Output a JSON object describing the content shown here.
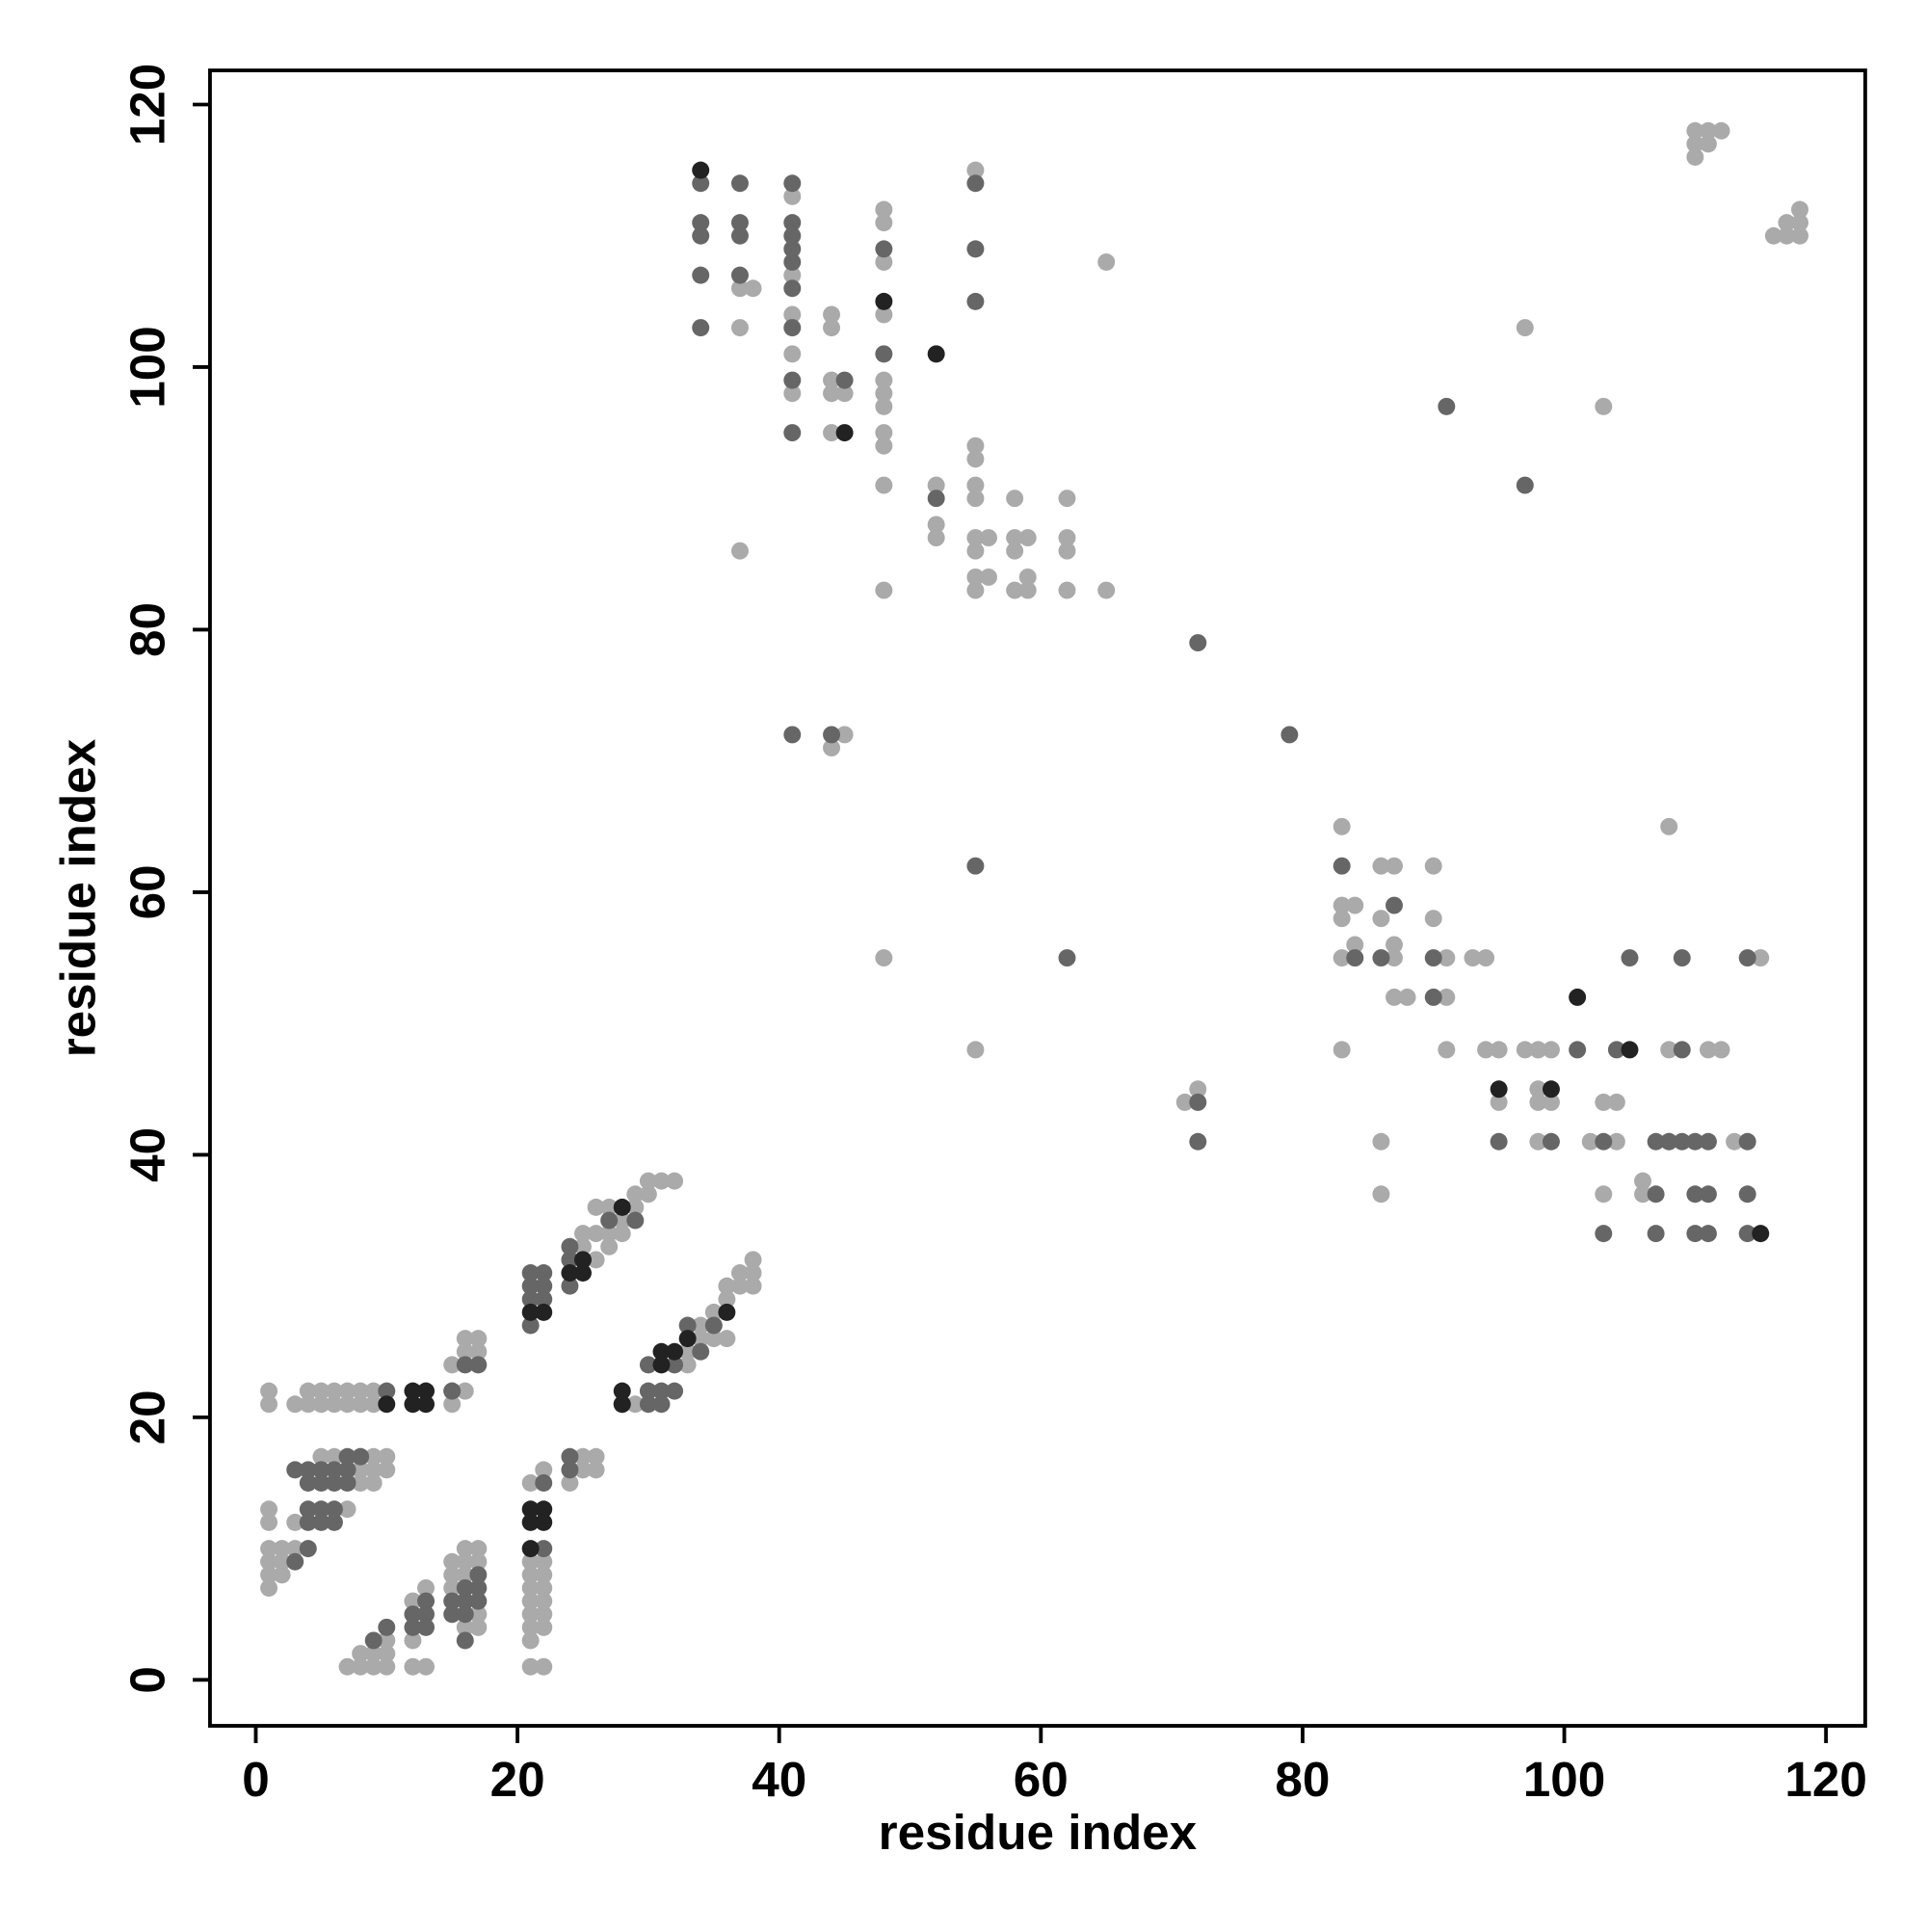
{
  "chart_data": {
    "type": "scatter",
    "x_label": "residue index",
    "y_label": "residue index",
    "xlim": [
      -3.5,
      123
    ],
    "ylim": [
      -3.5,
      122.6
    ],
    "xticks": [
      0,
      20,
      40,
      60,
      80,
      100,
      120
    ],
    "yticks": [
      0,
      20,
      40,
      60,
      80,
      100,
      120
    ],
    "grid": false,
    "series": [
      {
        "color": "#aaaaaa",
        "x": [
          37,
          38,
          37,
          37,
          41,
          41,
          41,
          41,
          41,
          44,
          44,
          44,
          44,
          44,
          45,
          48,
          48,
          48,
          48,
          48,
          48,
          48,
          48,
          48,
          48,
          48,
          55,
          55,
          55,
          55,
          55,
          55,
          55,
          55,
          55,
          52,
          52,
          52,
          56,
          56,
          58,
          58,
          58,
          58,
          59,
          59,
          59,
          62,
          62,
          62,
          62,
          65,
          65,
          45,
          44,
          48,
          55,
          71,
          72,
          97,
          103,
          110,
          110,
          111,
          111,
          112,
          110,
          117,
          117,
          118,
          118,
          118,
          116,
          83,
          83,
          83,
          83,
          83,
          84,
          84,
          84,
          86,
          87,
          86,
          87,
          87,
          87,
          88,
          90,
          90,
          91,
          91,
          91,
          93,
          94,
          94,
          95,
          95,
          97,
          98,
          98,
          98,
          98,
          99,
          99,
          102,
          103,
          103,
          104,
          104,
          106,
          106,
          108,
          108,
          108,
          111,
          112,
          113,
          115,
          86,
          86,
          1,
          1,
          1,
          1,
          1,
          1,
          1,
          1,
          2,
          2,
          2,
          3,
          3,
          3,
          4,
          4,
          5,
          5,
          5,
          6,
          6,
          6,
          7,
          7,
          7,
          8,
          8,
          8,
          8,
          8,
          9,
          9,
          9,
          9,
          9,
          10,
          10,
          7,
          8,
          8,
          9,
          9,
          10,
          10,
          10,
          12,
          12,
          13,
          12,
          13,
          15,
          15,
          15,
          16,
          16,
          16,
          16,
          17,
          17,
          17,
          17,
          15,
          15,
          15,
          16,
          16,
          17,
          17,
          16,
          21,
          21,
          21,
          21,
          21,
          21,
          21,
          21,
          21,
          22,
          22,
          22,
          22,
          22,
          22,
          22,
          22,
          24,
          25,
          26,
          26,
          25,
          26,
          27,
          27,
          28,
          28,
          29,
          29,
          30,
          30,
          31,
          32,
          26,
          27,
          25,
          25,
          26,
          33,
          34,
          34,
          35,
          35,
          36,
          36,
          37,
          37,
          38,
          38,
          38,
          36,
          35,
          33,
          29
        ],
        "values": [
          106,
          106,
          103,
          86,
          113,
          107,
          104,
          101,
          98,
          104,
          103,
          99,
          98,
          95,
          98,
          112,
          111,
          108,
          104,
          99,
          98,
          97,
          95,
          94,
          91,
          83,
          115,
          94,
          93,
          91,
          90,
          87,
          86,
          84,
          83,
          91,
          88,
          87,
          87,
          84,
          90,
          87,
          86,
          83,
          87,
          84,
          83,
          90,
          87,
          86,
          83,
          83,
          108,
          72,
          71,
          55,
          48,
          44,
          45,
          103,
          97,
          118,
          117,
          118,
          117,
          118,
          116,
          111,
          110,
          112,
          111,
          110,
          110,
          65,
          59,
          58,
          55,
          48,
          59,
          56,
          55,
          62,
          62,
          58,
          56,
          55,
          52,
          52,
          62,
          58,
          55,
          52,
          48,
          55,
          55,
          48,
          48,
          44,
          48,
          48,
          45,
          44,
          41,
          48,
          44,
          41,
          37,
          44,
          44,
          41,
          38,
          37,
          65,
          48,
          41,
          48,
          48,
          41,
          55,
          41,
          37,
          22,
          21,
          13,
          12,
          10,
          9,
          8,
          7,
          10,
          9,
          8,
          21,
          12,
          10,
          22,
          21,
          22,
          21,
          17,
          22,
          21,
          17,
          22,
          21,
          13,
          22,
          21,
          17,
          16,
          15,
          22,
          21,
          17,
          16,
          15,
          17,
          16,
          1,
          1,
          2,
          1,
          2,
          1,
          2,
          3,
          3,
          1,
          1,
          6,
          7,
          9,
          8,
          7,
          10,
          9,
          4,
          8,
          10,
          9,
          5,
          4,
          22,
          21,
          24,
          26,
          25,
          26,
          25,
          22,
          15,
          9,
          8,
          7,
          6,
          5,
          4,
          3,
          1,
          1,
          9,
          8,
          7,
          6,
          5,
          4,
          16,
          15,
          17,
          17,
          16,
          16,
          36,
          36,
          33,
          34,
          35,
          36,
          37,
          37,
          38,
          38,
          38,
          34,
          34,
          33,
          34,
          32,
          25,
          26,
          27,
          28,
          27,
          29,
          30,
          30,
          31,
          30,
          31,
          32,
          26,
          26,
          24,
          21
        ]
      },
      {
        "color": "#666666",
        "x": [
          34,
          34,
          34,
          34,
          34,
          37,
          37,
          37,
          37,
          41,
          41,
          41,
          41,
          41,
          41,
          41,
          41,
          41,
          45,
          48,
          48,
          55,
          55,
          55,
          52,
          44,
          41,
          62,
          55,
          72,
          79,
          72,
          72,
          91,
          97,
          83,
          86,
          87,
          84,
          90,
          90,
          95,
          99,
          101,
          103,
          103,
          104,
          105,
          107,
          107,
          107,
          108,
          109,
          109,
          109,
          110,
          110,
          110,
          111,
          111,
          111,
          114,
          114,
          114,
          114,
          3,
          3,
          4,
          4,
          4,
          4,
          4,
          5,
          5,
          5,
          5,
          6,
          6,
          6,
          6,
          7,
          7,
          7,
          8,
          10,
          9,
          12,
          12,
          13,
          13,
          13,
          15,
          15,
          16,
          16,
          16,
          16,
          17,
          17,
          17,
          16,
          17,
          15,
          10,
          21,
          21,
          21,
          21,
          22,
          22,
          22,
          22,
          22,
          24,
          24,
          24,
          24,
          24,
          25,
          27,
          29,
          30,
          30,
          31,
          31,
          32,
          32,
          33,
          34,
          35,
          30,
          28
        ],
        "values": [
          114,
          111,
          110,
          107,
          103,
          114,
          111,
          110,
          107,
          114,
          111,
          110,
          109,
          108,
          106,
          103,
          99,
          95,
          99,
          109,
          101,
          114,
          109,
          105,
          90,
          72,
          72,
          55,
          62,
          79,
          72,
          44,
          41,
          97,
          91,
          62,
          55,
          59,
          55,
          55,
          52,
          41,
          41,
          48,
          41,
          34,
          48,
          55,
          41,
          37,
          34,
          41,
          55,
          48,
          41,
          41,
          37,
          34,
          41,
          37,
          34,
          55,
          41,
          37,
          34,
          16,
          9,
          16,
          13,
          12,
          15,
          10,
          16,
          15,
          13,
          12,
          16,
          15,
          13,
          12,
          17,
          16,
          15,
          17,
          4,
          3,
          4,
          5,
          6,
          5,
          4,
          6,
          5,
          7,
          6,
          5,
          3,
          8,
          7,
          6,
          24,
          24,
          22,
          22,
          31,
          30,
          29,
          27,
          31,
          30,
          29,
          10,
          15,
          33,
          32,
          30,
          17,
          16,
          32,
          35,
          35,
          24,
          22,
          22,
          21,
          22,
          24,
          27,
          25,
          27,
          21,
          21
        ]
      },
      {
        "color": "#222222",
        "x": [
          34,
          48,
          52,
          45,
          95,
          99,
          101,
          105,
          115,
          10,
          12,
          12,
          13,
          13,
          21,
          21,
          21,
          22,
          22,
          21,
          22,
          24,
          25,
          25,
          28,
          28,
          28,
          31,
          31,
          32,
          33,
          36
        ],
        "values": [
          115,
          105,
          101,
          95,
          45,
          45,
          52,
          48,
          34,
          21,
          22,
          21,
          22,
          21,
          13,
          12,
          10,
          13,
          12,
          28,
          28,
          31,
          31,
          32,
          36,
          22,
          21,
          25,
          24,
          25,
          26,
          28
        ]
      }
    ]
  }
}
